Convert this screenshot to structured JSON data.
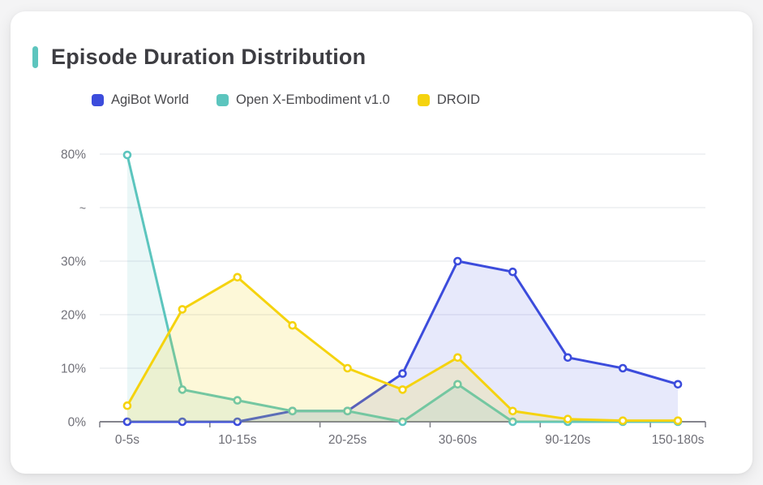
{
  "page": {
    "background": "#f4f4f5",
    "card_background": "#ffffff"
  },
  "header": {
    "title": "Episode Duration Distribution",
    "accent_color": "#5dc5be"
  },
  "chart_data": {
    "type": "line",
    "title": "Episode Duration Distribution",
    "categories": [
      "0-5s",
      "",
      "10-15s",
      "",
      "20-25s",
      "",
      "30-60s",
      "",
      "90-120s",
      "",
      "150-180s"
    ],
    "series": [
      {
        "name": "AgiBot World",
        "color": "#3c4cdc",
        "fill_opacity": 0.12,
        "values": [
          0,
          0,
          0,
          2,
          2,
          9,
          30,
          28,
          12,
          10,
          7
        ]
      },
      {
        "name": "Open X-Embodiment v1.0",
        "color": "#5cc5be",
        "fill_opacity": 0.13,
        "values": [
          79.6,
          6,
          4,
          2,
          2,
          0,
          7,
          0,
          0,
          0,
          0
        ]
      },
      {
        "name": "DROID",
        "color": "#f5d30e",
        "fill_opacity": 0.16,
        "values": [
          3,
          21,
          27,
          18,
          10,
          6,
          12,
          2,
          0.5,
          0.2,
          0.2
        ]
      }
    ],
    "xlabel": "",
    "ylabel": "",
    "y_axis": {
      "ticks": [
        {
          "label": "0%",
          "value": 0
        },
        {
          "label": "10%",
          "value": 10
        },
        {
          "label": "20%",
          "value": 20
        },
        {
          "label": "30%",
          "value": 30
        },
        {
          "label": "~",
          "value": "break"
        },
        {
          "label": "80%",
          "value": 80
        }
      ],
      "break_between": [
        30,
        80
      ]
    },
    "grid": true,
    "legend_position": "top",
    "styles": {
      "grid_color": "#e8e9ee",
      "axis_color": "#84848c",
      "axis_label_color": "#717179",
      "point_fill": "#ffffff"
    }
  }
}
